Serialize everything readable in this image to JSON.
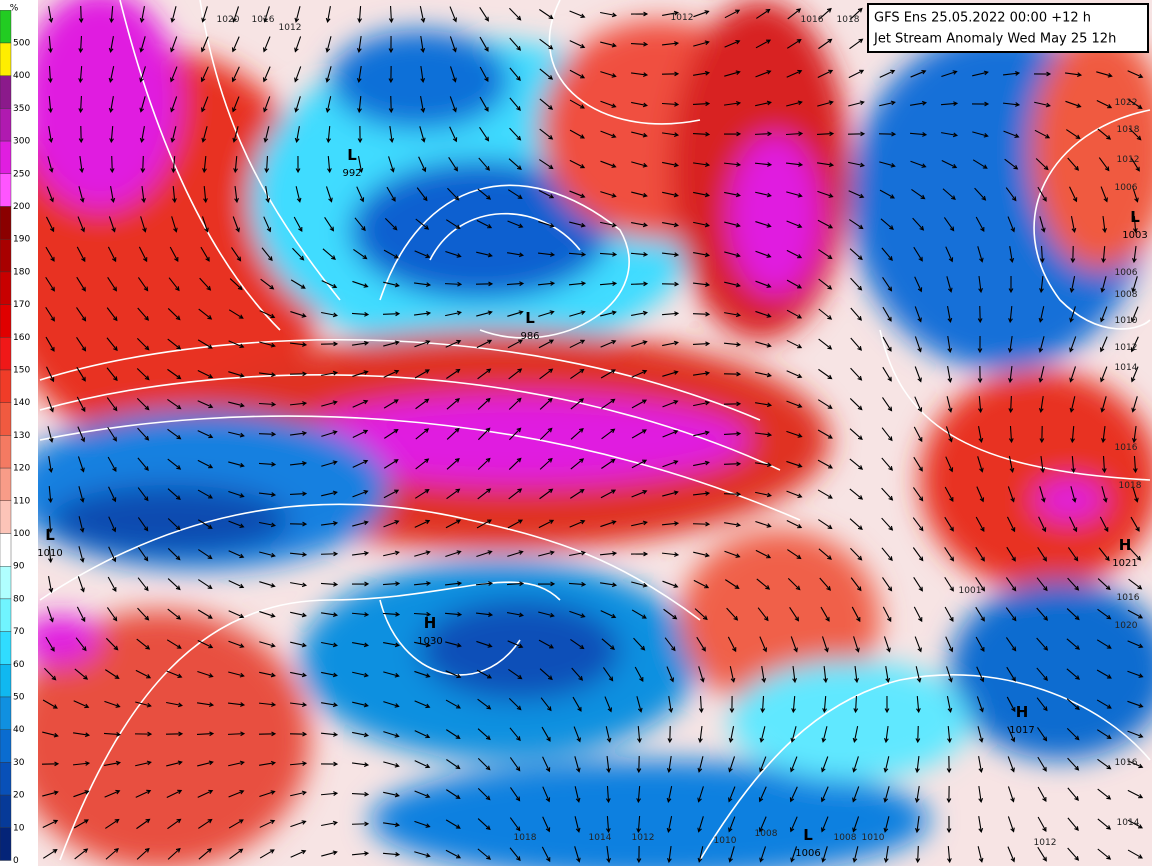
{
  "header": {
    "line1": "GFS Ens 25.05.2022 00:00 +12 h",
    "line2": "Jet Stream Anomaly Wed May 25 12h"
  },
  "legend": {
    "unit": "%",
    "labels": [
      500,
      400,
      350,
      300,
      250,
      200,
      190,
      180,
      170,
      160,
      150,
      140,
      130,
      120,
      110,
      100,
      90,
      80,
      70,
      60,
      50,
      40,
      30,
      20,
      10,
      0
    ],
    "colors": [
      "#22cc22",
      "#ffee00",
      "#8b1a8b",
      "#b01ab0",
      "#e01ee0",
      "#ff55ff",
      "#8b0000",
      "#a80000",
      "#c80000",
      "#e00000",
      "#f01818",
      "#f03c28",
      "#f05a40",
      "#f47a62",
      "#f89c88",
      "#fcc4b8",
      "#ffffff",
      "#b0ffff",
      "#70f4ff",
      "#30dcff",
      "#10b8f0",
      "#1090e0",
      "#0a6cd0",
      "#0850b8",
      "#063a98",
      "#042478"
    ]
  },
  "pressure_centers": [
    {
      "symbol": "L",
      "value": 992
    },
    {
      "symbol": "L",
      "value": 986
    },
    {
      "symbol": "H",
      "value": 1030
    },
    {
      "symbol": "L",
      "value": 1010
    },
    {
      "symbol": "L",
      "value": 1006
    },
    {
      "symbol": "H",
      "value": 1017
    },
    {
      "symbol": "H",
      "value": 1021
    },
    {
      "symbol": "L",
      "value": 1003
    }
  ],
  "isobar_labels": [
    1020,
    1016,
    1012,
    1012,
    1016,
    1018,
    1022,
    1018,
    1012,
    1006,
    1006,
    1008,
    1010,
    1012,
    1014,
    1016,
    1018,
    1016,
    1016,
    1020,
    1018,
    1014,
    1012,
    1010,
    1008,
    1008,
    1010,
    1012,
    1014,
    1001
  ]
}
